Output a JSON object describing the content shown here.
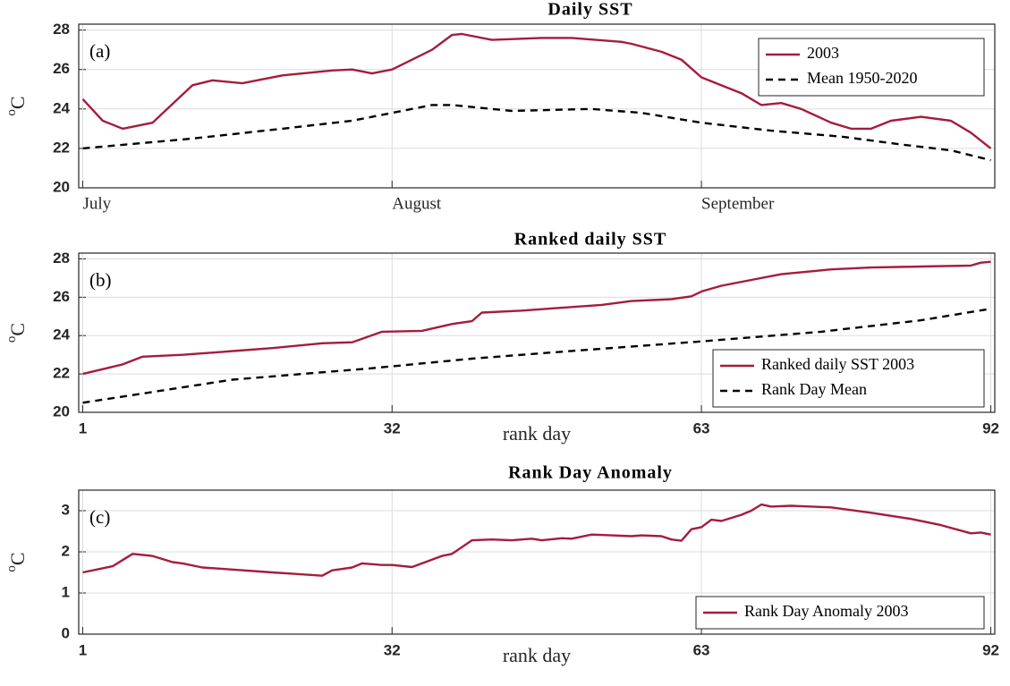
{
  "chart_data": [
    {
      "type": "line",
      "title": "Daily SST",
      "panel_label": "(a)",
      "ylabel": [
        "o",
        "C"
      ],
      "xlim": [
        0.6,
        92.4
      ],
      "ylim": [
        20,
        28.3
      ],
      "xticks": [
        {
          "value": 1,
          "label": "July"
        },
        {
          "value": 32,
          "label": "August"
        },
        {
          "value": 63,
          "label": "September"
        }
      ],
      "yticks": [
        20,
        22,
        24,
        26,
        28
      ],
      "grid": true,
      "legend": "upper right",
      "series": [
        {
          "name": "2003",
          "color": "#a51c3c",
          "linestyle": "solid",
          "x": [
            1,
            3,
            5,
            8,
            12,
            14,
            17,
            21,
            26,
            28,
            30,
            32,
            36,
            38,
            39,
            42,
            47,
            50,
            55,
            56,
            59,
            61,
            63,
            67,
            69,
            71,
            73,
            76,
            78,
            80,
            82,
            85,
            88,
            90,
            92
          ],
          "values": [
            24.5,
            23.4,
            23.0,
            23.3,
            25.2,
            25.45,
            25.3,
            25.7,
            25.95,
            26.0,
            25.8,
            26.0,
            27.0,
            27.75,
            27.8,
            27.5,
            27.6,
            27.6,
            27.4,
            27.3,
            26.9,
            26.5,
            25.6,
            24.8,
            24.2,
            24.3,
            24.0,
            23.3,
            23.0,
            23.0,
            23.4,
            23.6,
            23.4,
            22.8,
            22.0
          ]
        },
        {
          "name": "Mean 1950-2020",
          "color": "#000000",
          "linestyle": "dashed",
          "x": [
            1,
            12,
            21,
            28,
            33,
            36,
            38,
            44,
            52,
            57,
            63,
            70,
            77,
            83,
            88,
            92
          ],
          "values": [
            22.0,
            22.5,
            23.0,
            23.4,
            23.9,
            24.2,
            24.2,
            23.9,
            24.0,
            23.8,
            23.3,
            22.9,
            22.6,
            22.2,
            21.9,
            21.4
          ]
        }
      ]
    },
    {
      "type": "line",
      "title": "Ranked daily SST",
      "panel_label": "(b)",
      "ylabel": [
        "o",
        "C"
      ],
      "xlabel": "rank day",
      "xlim": [
        0.6,
        92.4
      ],
      "ylim": [
        20,
        28.3
      ],
      "xticks": [
        1,
        32,
        63,
        92
      ],
      "yticks": [
        20,
        22,
        24,
        26,
        28
      ],
      "grid": true,
      "legend": "lower right",
      "series": [
        {
          "name": "Ranked daily SST 2003",
          "color": "#a51c3c",
          "linestyle": "solid",
          "x": [
            1,
            5,
            7,
            11,
            15,
            20,
            25,
            28,
            31,
            35,
            38,
            40,
            41,
            45,
            49,
            53,
            56,
            60,
            62,
            63,
            65,
            68,
            71,
            73,
            76,
            80,
            85,
            90,
            91,
            92
          ],
          "values": [
            22.0,
            22.5,
            22.9,
            23.0,
            23.15,
            23.35,
            23.6,
            23.65,
            24.2,
            24.25,
            24.6,
            24.75,
            25.2,
            25.3,
            25.45,
            25.6,
            25.8,
            25.9,
            26.05,
            26.3,
            26.6,
            26.9,
            27.2,
            27.3,
            27.45,
            27.55,
            27.6,
            27.65,
            27.8,
            27.85
          ]
        },
        {
          "name": "Rank Day Mean",
          "color": "#000000",
          "linestyle": "dashed",
          "x": [
            1,
            16,
            30,
            40,
            50,
            63,
            75,
            85,
            92
          ],
          "values": [
            20.5,
            21.7,
            22.3,
            22.8,
            23.2,
            23.7,
            24.2,
            24.8,
            25.4
          ]
        }
      ]
    },
    {
      "type": "line",
      "title": "Rank Day Anomaly",
      "panel_label": "(c)",
      "ylabel": [
        "o",
        "C"
      ],
      "xlabel": "rank day",
      "xlim": [
        0.6,
        92.4
      ],
      "ylim": [
        0,
        3.5
      ],
      "xticks": [
        1,
        32,
        63,
        92
      ],
      "yticks": [
        0,
        1,
        2,
        3
      ],
      "grid": true,
      "legend": "lower right",
      "series": [
        {
          "name": "Rank Day Anomaly 2003",
          "color": "#a51c3c",
          "linestyle": "solid",
          "x": [
            1,
            4,
            5,
            6,
            8,
            10,
            11,
            13,
            16,
            20,
            22,
            25,
            26,
            28,
            29,
            31,
            32,
            34,
            35,
            37,
            38,
            40,
            42,
            44,
            46,
            47,
            49,
            50,
            52,
            54,
            56,
            57,
            59,
            60,
            61,
            62,
            63,
            64,
            65,
            67,
            68,
            69,
            70,
            72,
            76,
            80,
            84,
            87,
            90,
            91,
            92
          ],
          "values": [
            1.5,
            1.65,
            1.8,
            1.95,
            1.9,
            1.75,
            1.72,
            1.62,
            1.57,
            1.5,
            1.47,
            1.42,
            1.55,
            1.62,
            1.72,
            1.68,
            1.68,
            1.63,
            1.72,
            1.9,
            1.95,
            2.28,
            2.3,
            2.28,
            2.32,
            2.28,
            2.33,
            2.32,
            2.42,
            2.4,
            2.38,
            2.4,
            2.38,
            2.3,
            2.27,
            2.55,
            2.6,
            2.78,
            2.75,
            2.9,
            3.0,
            3.15,
            3.1,
            3.12,
            3.08,
            2.95,
            2.8,
            2.65,
            2.45,
            2.47,
            2.42
          ]
        }
      ]
    }
  ]
}
